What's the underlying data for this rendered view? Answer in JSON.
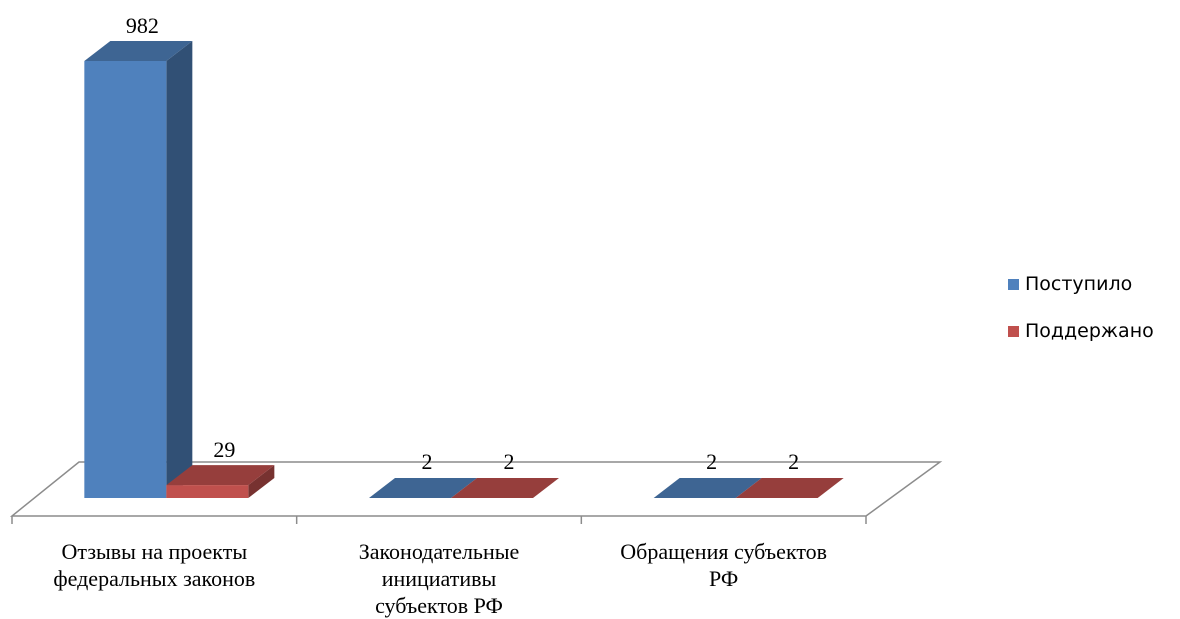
{
  "chart_data": {
    "type": "bar",
    "categories": [
      [
        "Отзывы на проекты",
        "федеральных законов"
      ],
      [
        "Законодательные",
        "инициативы",
        "субъектов РФ"
      ],
      [
        "Обращения субъектов",
        "РФ"
      ]
    ],
    "series": [
      {
        "name": "Поступило",
        "values": [
          982,
          2,
          2
        ],
        "color": "#4f81bd"
      },
      {
        "name": "Поддержано",
        "values": [
          29,
          2,
          2
        ],
        "color": "#c0504d"
      }
    ],
    "data_labels": true,
    "legend_position": "right",
    "three_d": true
  }
}
